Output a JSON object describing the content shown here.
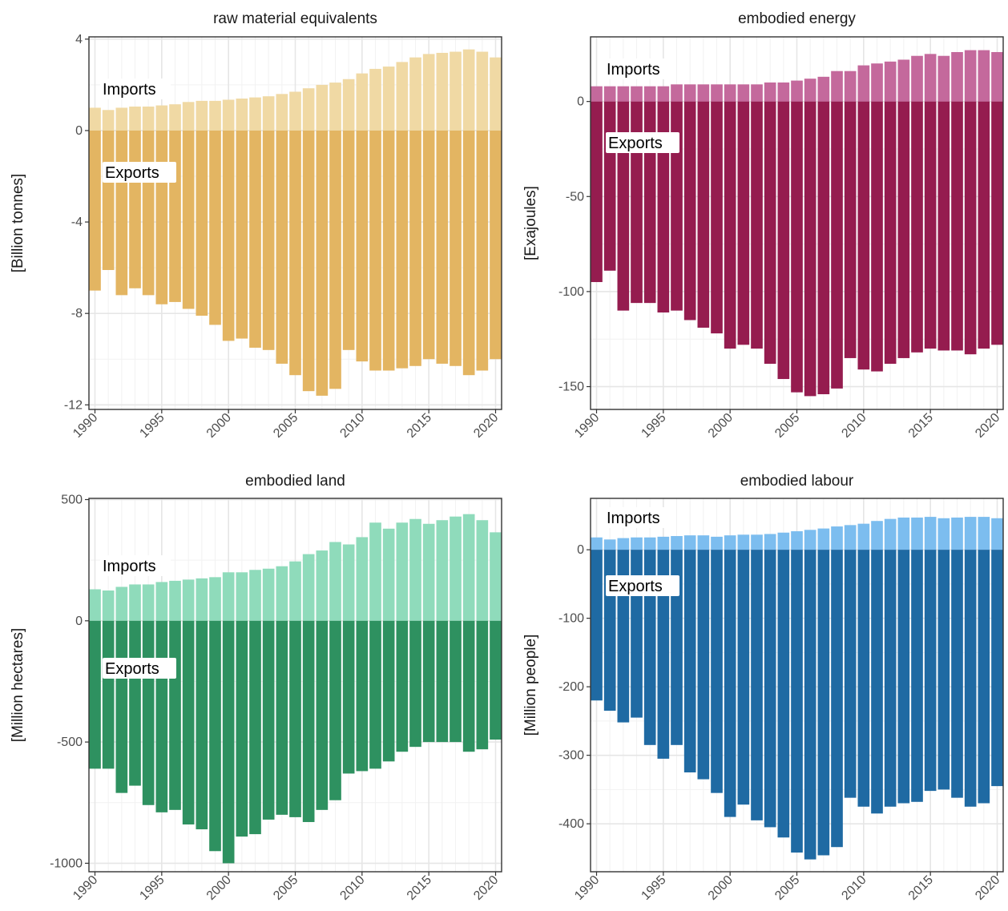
{
  "chart_data": [
    {
      "type": "bar",
      "title": "raw material equivalents",
      "ylabel": "[Billion tonnes]",
      "xlabel": "",
      "x": [
        1990,
        1991,
        1992,
        1993,
        1994,
        1995,
        1996,
        1997,
        1998,
        1999,
        2000,
        2001,
        2002,
        2003,
        2004,
        2005,
        2006,
        2007,
        2008,
        2009,
        2010,
        2011,
        2012,
        2013,
        2014,
        2015,
        2016,
        2017,
        2018,
        2019,
        2020
      ],
      "xticks": [
        "1990",
        "1995",
        "2000",
        "2005",
        "2010",
        "2015",
        "2020"
      ],
      "yticks": [
        "4",
        "0",
        "-4",
        "-8",
        "-12"
      ],
      "ylim": [
        -12.2,
        4.1
      ],
      "grid": true,
      "annotations": [
        "Imports",
        "Exports"
      ],
      "series": [
        {
          "name": "Imports",
          "color": "#f0d9a4",
          "values": [
            1.0,
            0.9,
            1.0,
            1.05,
            1.05,
            1.1,
            1.15,
            1.25,
            1.3,
            1.3,
            1.35,
            1.4,
            1.45,
            1.5,
            1.6,
            1.7,
            1.85,
            2.0,
            2.1,
            2.25,
            2.5,
            2.7,
            2.8,
            3.0,
            3.2,
            3.35,
            3.4,
            3.45,
            3.55,
            3.45,
            3.2
          ]
        },
        {
          "name": "Exports",
          "color": "#e3b562",
          "values": [
            -7.0,
            -6.1,
            -7.2,
            -6.9,
            -7.2,
            -7.6,
            -7.5,
            -7.8,
            -8.1,
            -8.5,
            -9.2,
            -9.1,
            -9.5,
            -9.6,
            -10.2,
            -10.7,
            -11.4,
            -11.6,
            -11.3,
            -9.6,
            -10.1,
            -10.5,
            -10.5,
            -10.4,
            -10.3,
            -10.0,
            -10.2,
            -10.3,
            -10.7,
            -10.5,
            -10.0
          ]
        }
      ]
    },
    {
      "type": "bar",
      "title": "embodied energy",
      "ylabel": "[Exajoules]",
      "xlabel": "",
      "x": [
        1990,
        1991,
        1992,
        1993,
        1994,
        1995,
        1996,
        1997,
        1998,
        1999,
        2000,
        2001,
        2002,
        2003,
        2004,
        2005,
        2006,
        2007,
        2008,
        2009,
        2010,
        2011,
        2012,
        2013,
        2014,
        2015,
        2016,
        2017,
        2018,
        2019,
        2020
      ],
      "xticks": [
        "1990",
        "1995",
        "2000",
        "2005",
        "2010",
        "2015",
        "2020"
      ],
      "yticks": [
        "0",
        "-50",
        "-100",
        "-150"
      ],
      "ylim": [
        -162,
        34
      ],
      "grid": true,
      "annotations": [
        "Imports",
        "Exports"
      ],
      "series": [
        {
          "name": "Imports",
          "color": "#c4699c",
          "values": [
            8,
            8,
            8,
            8,
            8,
            8,
            9,
            9,
            9,
            9,
            9,
            9,
            9,
            10,
            10,
            11,
            12,
            13,
            16,
            16,
            19,
            20,
            21,
            22,
            24,
            25,
            24,
            26,
            27,
            27,
            26
          ]
        },
        {
          "name": "Exports",
          "color": "#951c4f",
          "values": [
            -95,
            -89,
            -110,
            -106,
            -106,
            -111,
            -110,
            -115,
            -119,
            -122,
            -130,
            -128,
            -130,
            -138,
            -146,
            -153,
            -155,
            -154,
            -151,
            -135,
            -141,
            -142,
            -138,
            -135,
            -132,
            -130,
            -131,
            -131,
            -133,
            -130,
            -128
          ]
        }
      ]
    },
    {
      "type": "bar",
      "title": "embodied land",
      "ylabel": "[Million hectares]",
      "xlabel": "",
      "x": [
        1990,
        1991,
        1992,
        1993,
        1994,
        1995,
        1996,
        1997,
        1998,
        1999,
        2000,
        2001,
        2002,
        2003,
        2004,
        2005,
        2006,
        2007,
        2008,
        2009,
        2010,
        2011,
        2012,
        2013,
        2014,
        2015,
        2016,
        2017,
        2018,
        2019,
        2020
      ],
      "xticks": [
        "1990",
        "1995",
        "2000",
        "2005",
        "2010",
        "2015",
        "2020"
      ],
      "yticks": [
        "500",
        "0",
        "-500",
        "-1000"
      ],
      "ylim": [
        -1035,
        505
      ],
      "grid": true,
      "annotations": [
        "Imports",
        "Exports"
      ],
      "series": [
        {
          "name": "Imports",
          "color": "#8fdbbb",
          "values": [
            130,
            125,
            140,
            150,
            150,
            160,
            165,
            170,
            175,
            180,
            200,
            200,
            210,
            215,
            225,
            245,
            275,
            290,
            325,
            315,
            345,
            405,
            380,
            405,
            420,
            400,
            415,
            430,
            440,
            415,
            365
          ]
        },
        {
          "name": "Exports",
          "color": "#2e9160",
          "values": [
            -610,
            -610,
            -710,
            -680,
            -760,
            -790,
            -780,
            -840,
            -860,
            -950,
            -1000,
            -890,
            -880,
            -820,
            -800,
            -810,
            -830,
            -780,
            -740,
            -630,
            -620,
            -610,
            -580,
            -540,
            -520,
            -500,
            -500,
            -500,
            -540,
            -530,
            -490
          ]
        }
      ]
    },
    {
      "type": "bar",
      "title": "embodied labour",
      "ylabel": "[Million people]",
      "xlabel": "",
      "x": [
        1990,
        1991,
        1992,
        1993,
        1994,
        1995,
        1996,
        1997,
        1998,
        1999,
        2000,
        2001,
        2002,
        2003,
        2004,
        2005,
        2006,
        2007,
        2008,
        2009,
        2010,
        2011,
        2012,
        2013,
        2014,
        2015,
        2016,
        2017,
        2018,
        2019,
        2020
      ],
      "xticks": [
        "1990",
        "1995",
        "2000",
        "2005",
        "2010",
        "2015",
        "2020"
      ],
      "yticks": [
        "0",
        "-100",
        "-200",
        "-300",
        "-400"
      ],
      "ylim": [
        -470,
        75
      ],
      "grid": true,
      "annotations": [
        "Imports",
        "Exports"
      ],
      "series": [
        {
          "name": "Imports",
          "color": "#7cbdef",
          "values": [
            18,
            15,
            17,
            18,
            18,
            19,
            20,
            21,
            21,
            19,
            21,
            22,
            22,
            23,
            25,
            27,
            29,
            31,
            34,
            36,
            38,
            42,
            45,
            47,
            47,
            48,
            46,
            47,
            48,
            48,
            46
          ]
        },
        {
          "name": "Exports",
          "color": "#1f6aa3",
          "values": [
            -220,
            -235,
            -252,
            -245,
            -285,
            -305,
            -285,
            -325,
            -335,
            -355,
            -390,
            -372,
            -395,
            -405,
            -420,
            -442,
            -452,
            -446,
            -434,
            -362,
            -375,
            -385,
            -375,
            -370,
            -368,
            -352,
            -350,
            -362,
            -375,
            -370,
            -345
          ]
        }
      ]
    }
  ]
}
